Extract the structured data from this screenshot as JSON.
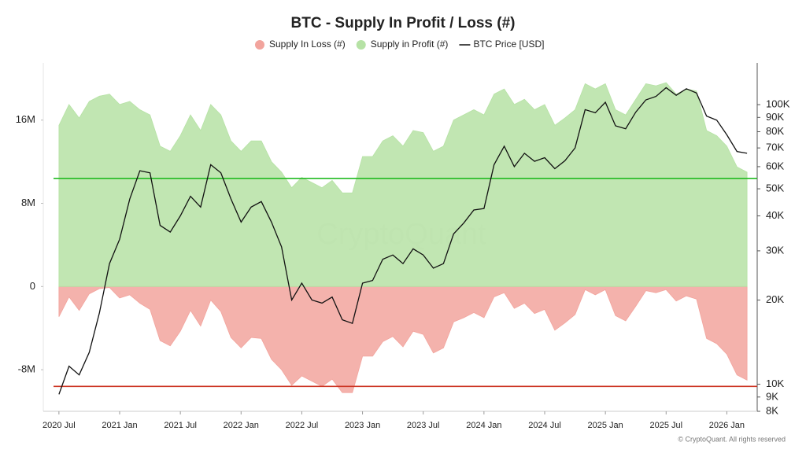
{
  "chart_data": {
    "type": "area",
    "title": "BTC - Supply In Profit / Loss (#)",
    "x": [
      "2020-07",
      "2020-08",
      "2020-09",
      "2020-10",
      "2020-11",
      "2020-12",
      "2021-01",
      "2021-02",
      "2021-03",
      "2021-04",
      "2021-05",
      "2021-06",
      "2021-07",
      "2021-08",
      "2021-09",
      "2021-10",
      "2021-11",
      "2021-12",
      "2022-01",
      "2022-02",
      "2022-03",
      "2022-04",
      "2022-05",
      "2022-06",
      "2022-07",
      "2022-08",
      "2022-09",
      "2022-10",
      "2022-11",
      "2022-12",
      "2023-01",
      "2023-02",
      "2023-03",
      "2023-04",
      "2023-05",
      "2023-06",
      "2023-07",
      "2023-08",
      "2023-09",
      "2023-10",
      "2023-11",
      "2023-12",
      "2024-01",
      "2024-02",
      "2024-03",
      "2024-04",
      "2024-05",
      "2024-06",
      "2024-07",
      "2024-08",
      "2024-09",
      "2024-10",
      "2024-11",
      "2024-12",
      "2025-01",
      "2025-02",
      "2025-03",
      "2025-04",
      "2025-05",
      "2025-06",
      "2025-07",
      "2025-08",
      "2025-09",
      "2025-10",
      "2025-11",
      "2025-12",
      "2026-01",
      "2026-02",
      "2026-03"
    ],
    "series": [
      {
        "name": "Supply In Loss (#)",
        "color": "#f2a49d",
        "values": [
          -2900000,
          -1000000,
          -2300000,
          -700000,
          -200000,
          -100000,
          -1100000,
          -800000,
          -1600000,
          -2200000,
          -5200000,
          -5700000,
          -4300000,
          -2300000,
          -3800000,
          -1300000,
          -2400000,
          -4900000,
          -5900000,
          -4900000,
          -5000000,
          -7000000,
          -8000000,
          -9500000,
          -8600000,
          -9100000,
          -9600000,
          -8900000,
          -10200000,
          -10200000,
          -6700000,
          -6700000,
          -5300000,
          -4800000,
          -5800000,
          -4300000,
          -4600000,
          -6400000,
          -5900000,
          -3400000,
          -3000000,
          -2500000,
          -3000000,
          -1000000,
          -600000,
          -2100000,
          -1600000,
          -2600000,
          -2200000,
          -4200000,
          -3500000,
          -2700000,
          -300000,
          -800000,
          -300000,
          -2800000,
          -3300000,
          -1900000,
          -400000,
          -600000,
          -300000,
          -1400000,
          -900000,
          -1200000,
          -5000000,
          -5500000,
          -6500000,
          -8500000,
          -9000000
        ]
      },
      {
        "name": "Supply in Profit (#)",
        "color": "#b6e2a5",
        "values": [
          15500000,
          17500000,
          16200000,
          17800000,
          18300000,
          18500000,
          17500000,
          17800000,
          17000000,
          16500000,
          13500000,
          13000000,
          14500000,
          16500000,
          15000000,
          17500000,
          16500000,
          14000000,
          13000000,
          14000000,
          14000000,
          12000000,
          11000000,
          9500000,
          10500000,
          10000000,
          9500000,
          10200000,
          9000000,
          9000000,
          12500000,
          12500000,
          14000000,
          14500000,
          13500000,
          15000000,
          14800000,
          13000000,
          13500000,
          16000000,
          16500000,
          17000000,
          16500000,
          18500000,
          19000000,
          17500000,
          18000000,
          17000000,
          17500000,
          15500000,
          16200000,
          17000000,
          19500000,
          19000000,
          19500000,
          17000000,
          16500000,
          18000000,
          19500000,
          19300000,
          19600000,
          18500000,
          19000000,
          18800000,
          15000000,
          14500000,
          13500000,
          11500000,
          11000000
        ]
      },
      {
        "name": "BTC Price [USD]",
        "type": "line",
        "axis": "y2",
        "color": "#111111",
        "values": [
          9200,
          11600,
          10800,
          13000,
          18000,
          27000,
          33000,
          46000,
          58000,
          57000,
          37000,
          35000,
          40000,
          47000,
          43000,
          61000,
          57000,
          46000,
          38000,
          43000,
          45000,
          38000,
          31000,
          20000,
          23000,
          20000,
          19500,
          20500,
          17000,
          16500,
          23000,
          23500,
          28000,
          29000,
          27000,
          30500,
          29000,
          26000,
          27000,
          34500,
          37700,
          42000,
          42500,
          61000,
          71000,
          60000,
          67000,
          62700,
          64600,
          59000,
          63000,
          70000,
          96000,
          93500,
          102000,
          84000,
          82000,
          94000,
          104000,
          107000,
          115000,
          108000,
          114000,
          110000,
          91000,
          88000,
          78000,
          68000,
          67000
        ]
      }
    ],
    "xlim": [
      "2020-06",
      "2026-04"
    ],
    "xticks": [
      {
        "value": "2020-07",
        "label": "2020 Jul"
      },
      {
        "value": "2021-01",
        "label": "2021 Jan"
      },
      {
        "value": "2021-07",
        "label": "2021 Jul"
      },
      {
        "value": "2022-01",
        "label": "2022 Jan"
      },
      {
        "value": "2022-07",
        "label": "2022 Jul"
      },
      {
        "value": "2023-01",
        "label": "2023 Jan"
      },
      {
        "value": "2023-07",
        "label": "2023 Jul"
      },
      {
        "value": "2024-01",
        "label": "2024 Jan"
      },
      {
        "value": "2024-07",
        "label": "2024 Jul"
      },
      {
        "value": "2025-01",
        "label": "2025 Jan"
      },
      {
        "value": "2025-07",
        "label": "2025 Jul"
      },
      {
        "value": "2026-01",
        "label": "2026 Jan"
      }
    ],
    "ylim": [
      -12000000,
      21500000
    ],
    "yticks": [
      {
        "value": -8000000,
        "label": "-8M"
      },
      0,
      {
        "value": 8000000,
        "label": "8M"
      },
      {
        "value": 16000000,
        "label": "16M"
      }
    ],
    "y2lim": [
      8000,
      141000
    ],
    "y2scale": "log",
    "y2ticks": [
      {
        "value": 8000,
        "label": "8K"
      },
      {
        "value": 9000,
        "label": "9K"
      },
      {
        "value": 10000,
        "label": "10K"
      },
      {
        "value": 20000,
        "label": "20K"
      },
      {
        "value": 30000,
        "label": "30K"
      },
      {
        "value": 40000,
        "label": "40K"
      },
      {
        "value": 50000,
        "label": "50K"
      },
      {
        "value": 60000,
        "label": "60K"
      },
      {
        "value": 70000,
        "label": "70K"
      },
      {
        "value": 80000,
        "label": "80K"
      },
      {
        "value": 90000,
        "label": "90K"
      },
      {
        "value": 100000,
        "label": "100K"
      }
    ],
    "reference_lines": [
      {
        "value": 10400000,
        "color": "#22bb22"
      },
      {
        "value": -9600000,
        "color": "#cc3322"
      }
    ],
    "legend": "top",
    "watermark": "CryptoQuant",
    "copyright": "© CryptoQuant. All rights reserved"
  }
}
